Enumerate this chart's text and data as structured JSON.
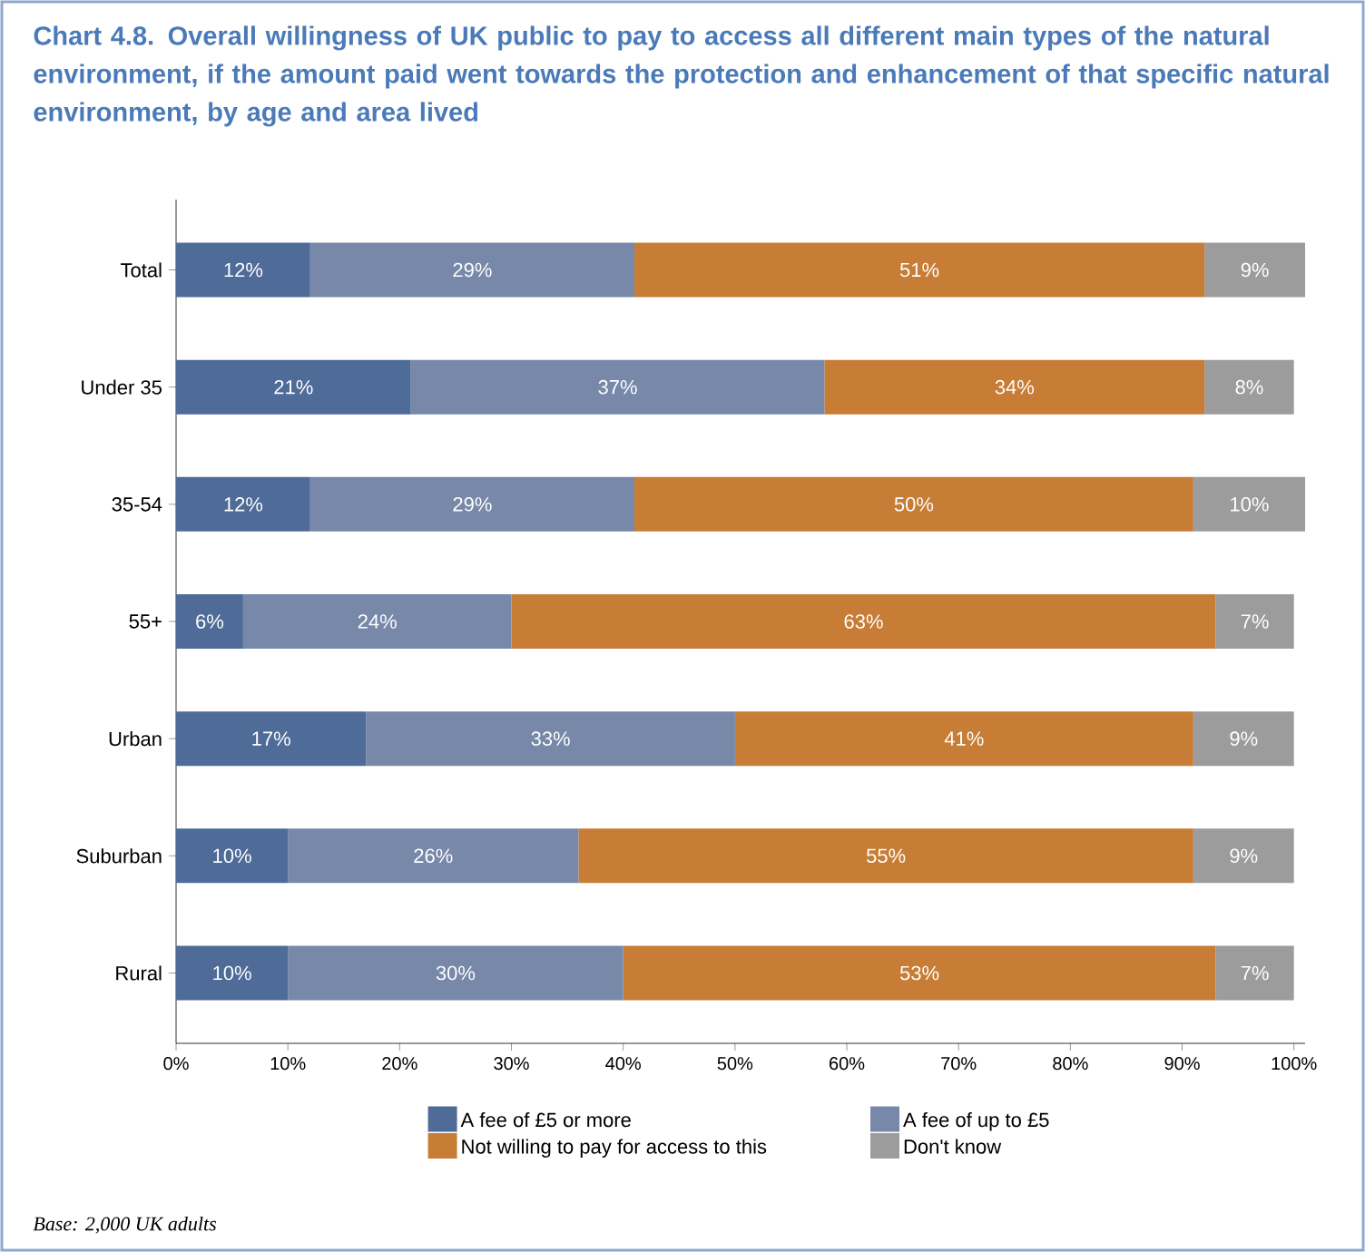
{
  "chart_data": {
    "type": "bar",
    "orientation": "horizontal",
    "stacked": true,
    "title": "Chart 4.8. Overall willingness of UK public to pay to access all different main types of the natural environment, if the amount paid went towards the protection and enhancement of that specific natural environment, by age and area lived",
    "categories": [
      "Total",
      "Under 35",
      "35-54",
      "55+",
      "Urban",
      "Suburban",
      "Rural"
    ],
    "series": [
      {
        "name": "A fee of £5 or more",
        "color": "#4f6b98",
        "values": [
          12,
          21,
          12,
          6,
          17,
          10,
          10
        ],
        "value_labels": [
          "12%",
          "21%",
          "12%",
          "6%",
          "17%",
          "10%",
          "10%"
        ]
      },
      {
        "name": "A fee of up to £5",
        "color": "#7788a9",
        "values": [
          29,
          37,
          29,
          24,
          33,
          26,
          30
        ],
        "value_labels": [
          "29%",
          "37%",
          "29%",
          "24%",
          "33%",
          "26%",
          "30%"
        ]
      },
      {
        "name": "Not willing to pay for access to this",
        "color": "#c77d36",
        "values": [
          51,
          34,
          50,
          63,
          41,
          55,
          53
        ],
        "value_labels": [
          "51%",
          "34%",
          "50%",
          "63%",
          "41%",
          "55%",
          "53%"
        ]
      },
      {
        "name": "Don't know",
        "color": "#9c9c9c",
        "values": [
          9,
          8,
          10,
          7,
          9,
          9,
          7
        ],
        "value_labels": [
          "9%",
          "8%",
          "10%",
          "7%",
          "9%",
          "9%",
          "7%"
        ]
      }
    ],
    "xlim": [
      0,
      101
    ],
    "xticks": [
      {
        "value": 0,
        "label": "0%"
      },
      {
        "value": 10,
        "label": "10%"
      },
      {
        "value": 20,
        "label": "20%"
      },
      {
        "value": 30,
        "label": "30%"
      },
      {
        "value": 40,
        "label": "40%"
      },
      {
        "value": 50,
        "label": "50%"
      },
      {
        "value": 60,
        "label": "60%"
      },
      {
        "value": 70,
        "label": "70%"
      },
      {
        "value": 80,
        "label": "80%"
      },
      {
        "value": 90,
        "label": "90%"
      },
      {
        "value": 100,
        "label": "100%"
      }
    ],
    "legend": "bottom",
    "annotations": [
      "Base: 2,000 UK adults"
    ]
  }
}
